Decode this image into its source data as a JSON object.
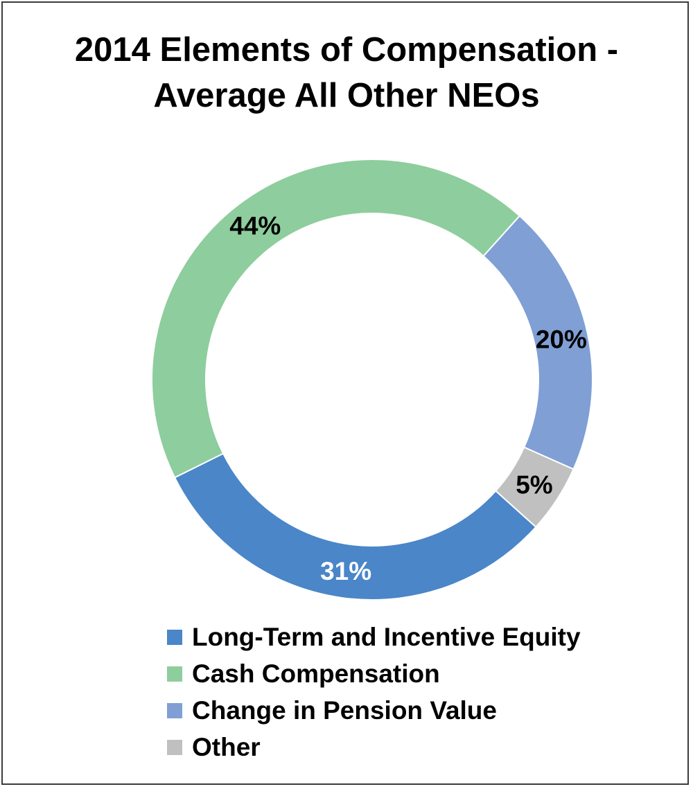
{
  "chart_data": {
    "type": "pie",
    "variant": "donut",
    "title_lines": [
      "2014 Elements of Compensation -",
      "Average All Other NEOs"
    ],
    "series": [
      {
        "name": "Long-Term and Incentive Equity",
        "value": 31,
        "label": "31%",
        "color": "#4a86c8",
        "label_color": "#ffffff"
      },
      {
        "name": "Cash Compensation",
        "value": 44,
        "label": "44%",
        "color": "#8ecd9d",
        "label_color": "#000000"
      },
      {
        "name": "Change in Pension Value",
        "value": 20,
        "label": "20%",
        "color": "#7f9fd5",
        "label_color": "#000000"
      },
      {
        "name": "Other",
        "value": 5,
        "label": "5%",
        "color": "#c0c0c0",
        "label_color": "#000000"
      }
    ],
    "legend_position": "bottom"
  }
}
